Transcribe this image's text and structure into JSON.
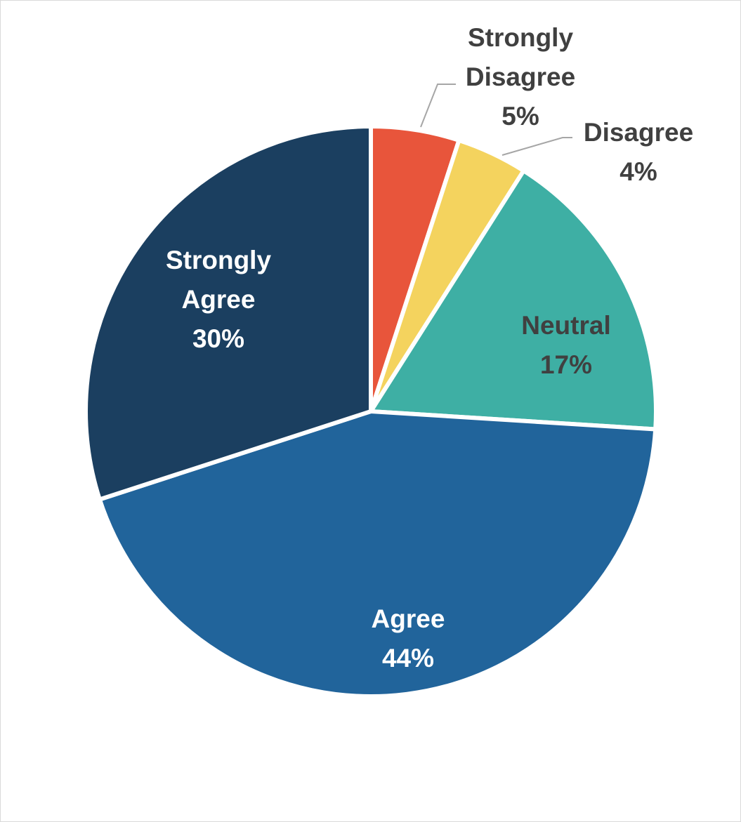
{
  "chart_data": {
    "type": "pie",
    "title": "",
    "slices": [
      {
        "label_lines": [
          "Strongly",
          "Disagree"
        ],
        "pct_text": "5%",
        "value": 5,
        "color": "#E8553B",
        "label_color": "#404040",
        "label_placement": "outside"
      },
      {
        "label_lines": [
          "Disagree"
        ],
        "pct_text": "4%",
        "value": 4,
        "color": "#F4D35E",
        "label_color": "#404040",
        "label_placement": "outside"
      },
      {
        "label_lines": [
          "Neutral"
        ],
        "pct_text": "17%",
        "value": 17,
        "color": "#3EAFA4",
        "label_color": "#404040",
        "label_placement": "inside"
      },
      {
        "label_lines": [
          "Agree"
        ],
        "pct_text": "44%",
        "value": 44,
        "color": "#21649B",
        "label_color": "#ffffff",
        "label_placement": "inside"
      },
      {
        "label_lines": [
          "Strongly",
          "Agree"
        ],
        "pct_text": "30%",
        "value": 30,
        "color": "#1B3F60",
        "label_color": "#ffffff",
        "label_placement": "inside"
      }
    ],
    "start_angle_deg": 0,
    "direction": "clockwise",
    "legend": "none",
    "leader_line_color": "#A6A6A6"
  }
}
